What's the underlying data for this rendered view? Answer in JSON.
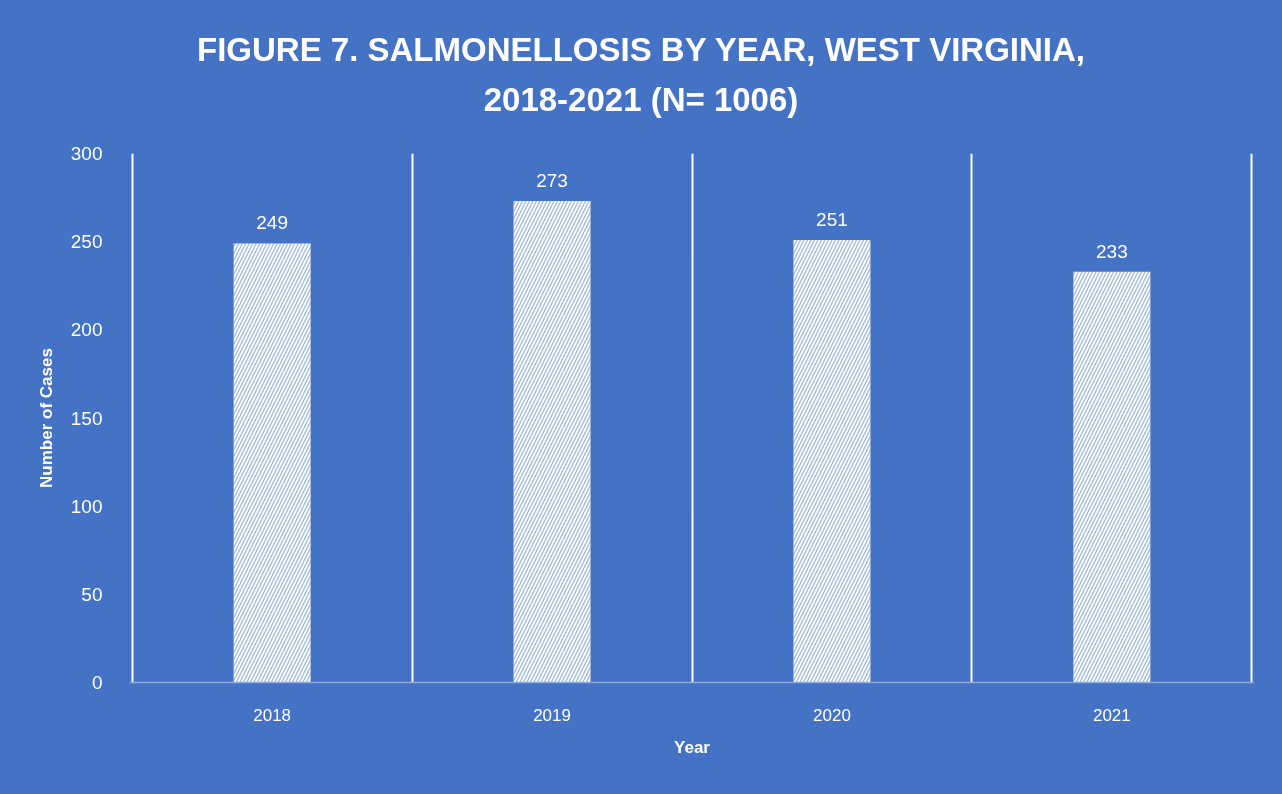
{
  "chart_data": {
    "type": "bar",
    "title": "FIGURE 7. SALMONELLOSIS BY YEAR, WEST VIRGINIA, 2018-2021 (N= 1006)",
    "xlabel": "Year",
    "ylabel": "Number of Cases",
    "categories": [
      "2018",
      "2019",
      "2020",
      "2021"
    ],
    "values": [
      249,
      273,
      251,
      233
    ],
    "color": "#ffffff",
    "ylim": [
      0,
      300
    ],
    "yticks": [
      0,
      50,
      100,
      150,
      200,
      250,
      300
    ],
    "grid": "x",
    "data_labels": true
  }
}
